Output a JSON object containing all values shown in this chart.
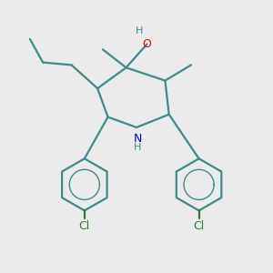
{
  "background_color": "#ebebeb",
  "bond_color": "#3d8b8b",
  "n_color": "#0000ee",
  "o_color": "#ee0000",
  "h_color": "#3d8b8b",
  "cl_color": "#2d7a2d",
  "figsize": [
    3.0,
    3.0
  ],
  "dpi": 100,
  "xlim": [
    -1.05,
    1.05
  ],
  "ylim": [
    -1.15,
    0.85
  ]
}
